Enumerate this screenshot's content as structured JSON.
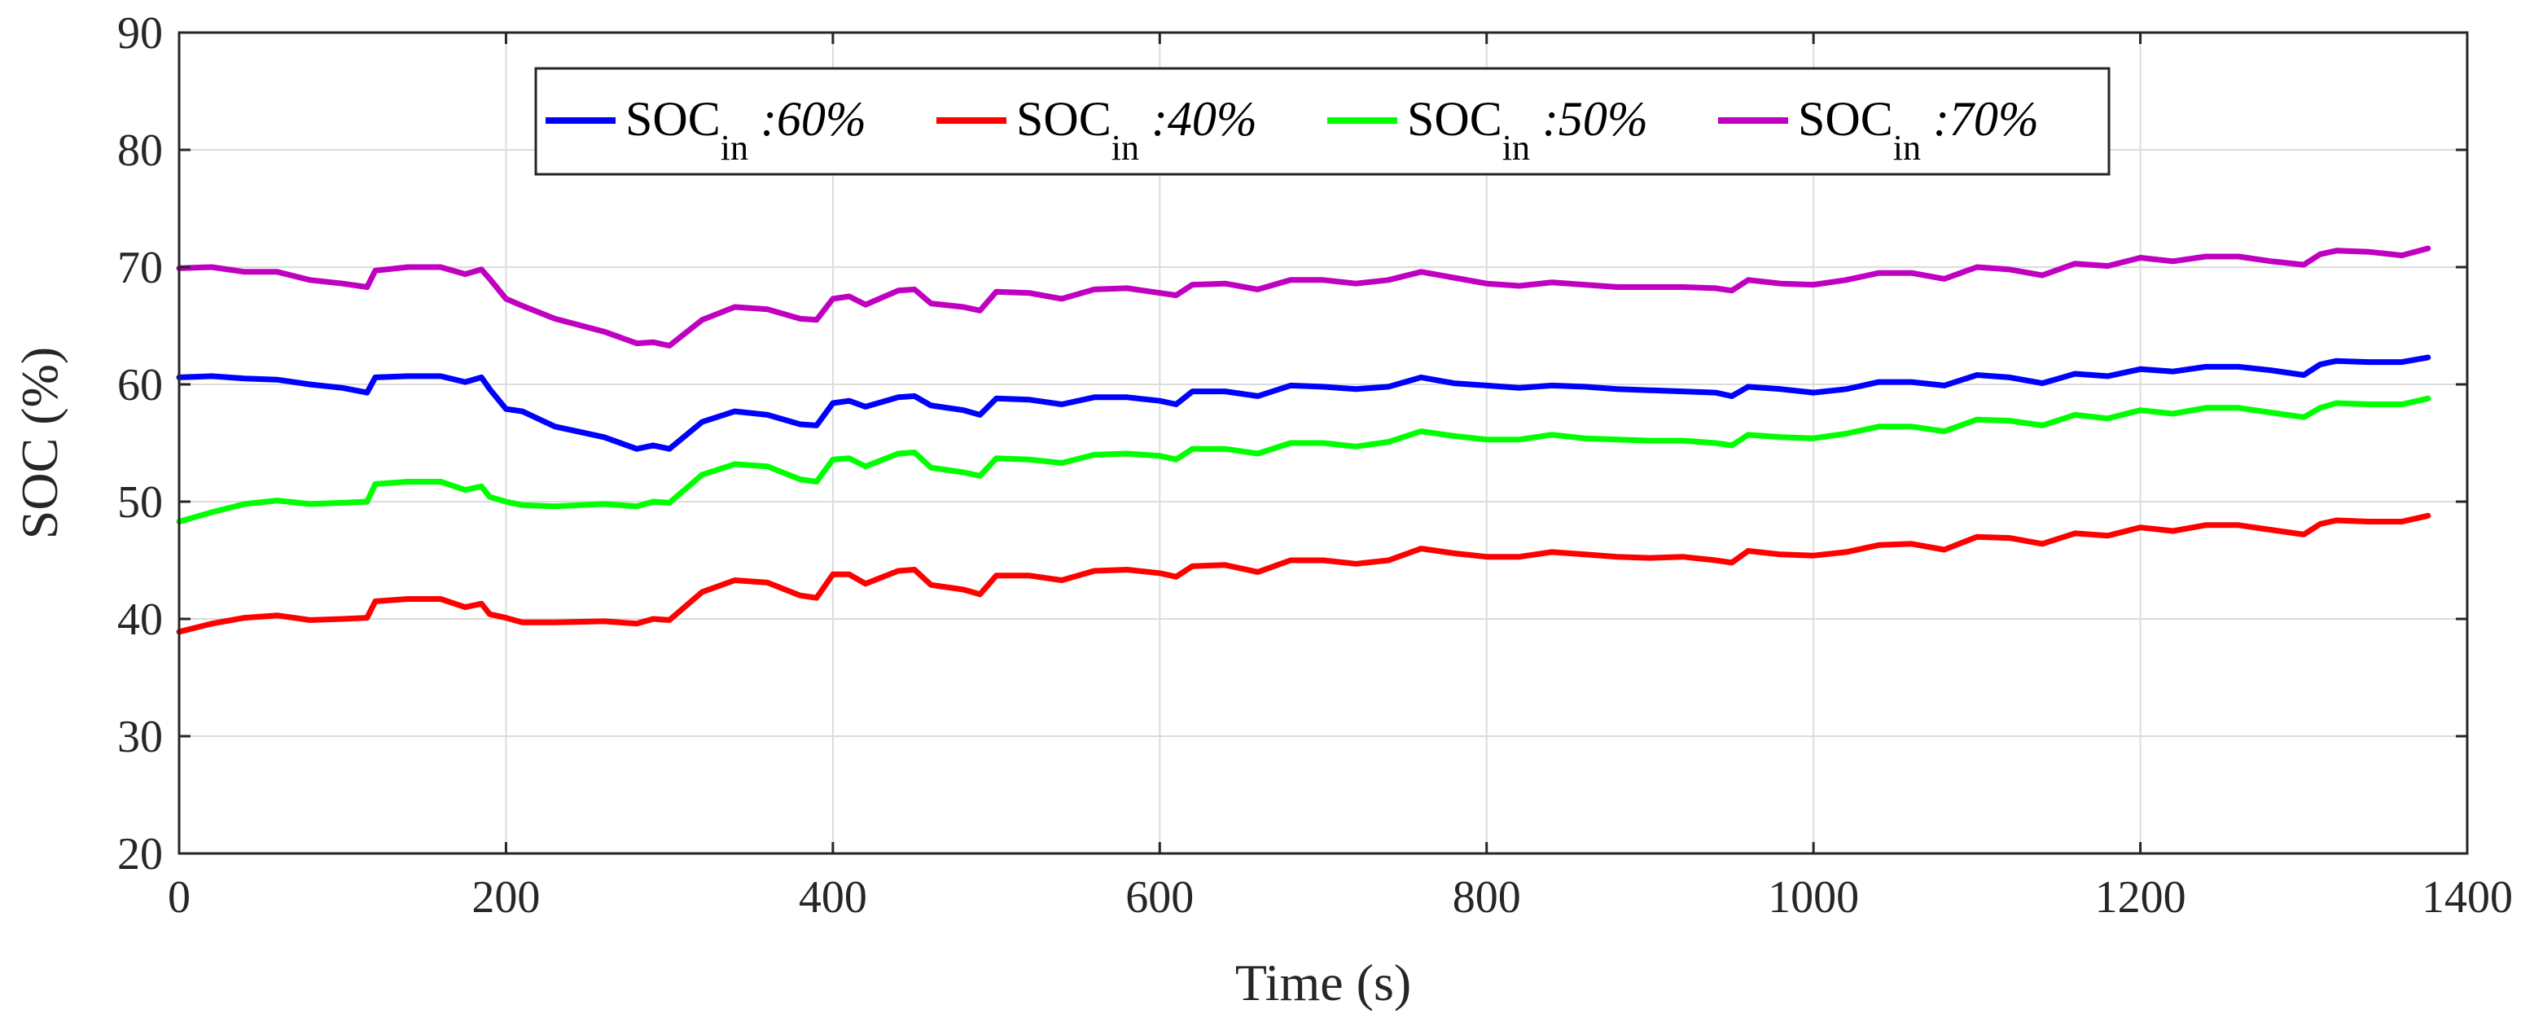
{
  "chart_data": {
    "type": "line",
    "xlabel": "Time (s)",
    "ylabel": "SOC (%)",
    "xlim": [
      0,
      1400
    ],
    "ylim": [
      20,
      90
    ],
    "xticks": [
      0,
      200,
      400,
      600,
      800,
      1000,
      1200,
      1400
    ],
    "yticks": [
      20,
      30,
      40,
      50,
      60,
      70,
      80,
      90
    ],
    "grid": true,
    "legend_position": "top-center",
    "series": [
      {
        "name": "SOC in :60%",
        "legend_main": "SOC",
        "legend_sub": "in",
        "legend_suffix": " :60%",
        "color": "#0000ff",
        "x": [
          0,
          20,
          40,
          60,
          80,
          100,
          115,
          120,
          140,
          160,
          175,
          185,
          190,
          200,
          210,
          230,
          260,
          280,
          290,
          300,
          320,
          340,
          360,
          380,
          390,
          400,
          410,
          420,
          440,
          450,
          460,
          480,
          490,
          500,
          520,
          540,
          560,
          580,
          600,
          610,
          620,
          640,
          660,
          680,
          700,
          720,
          740,
          760,
          780,
          800,
          820,
          840,
          860,
          880,
          900,
          920,
          940,
          950,
          960,
          980,
          1000,
          1020,
          1040,
          1060,
          1080,
          1100,
          1120,
          1140,
          1160,
          1180,
          1200,
          1220,
          1240,
          1260,
          1280,
          1300,
          1310,
          1320,
          1340,
          1360,
          1376
        ],
        "y": [
          60.6,
          60.7,
          60.5,
          60.4,
          60.0,
          59.7,
          59.3,
          60.6,
          60.7,
          60.7,
          60.2,
          60.6,
          59.6,
          57.9,
          57.7,
          56.4,
          55.5,
          54.5,
          54.8,
          54.5,
          56.8,
          57.7,
          57.4,
          56.6,
          56.5,
          58.4,
          58.6,
          58.1,
          58.9,
          59.0,
          58.2,
          57.8,
          57.4,
          58.8,
          58.7,
          58.3,
          58.9,
          58.9,
          58.6,
          58.3,
          59.4,
          59.4,
          59.0,
          59.9,
          59.8,
          59.6,
          59.8,
          60.6,
          60.1,
          59.9,
          59.7,
          59.9,
          59.8,
          59.6,
          59.5,
          59.4,
          59.3,
          59.0,
          59.8,
          59.6,
          59.3,
          59.6,
          60.2,
          60.2,
          59.9,
          60.8,
          60.6,
          60.1,
          60.9,
          60.7,
          61.3,
          61.1,
          61.5,
          61.5,
          61.2,
          60.8,
          61.7,
          62.0,
          61.9,
          61.9,
          62.3
        ]
      },
      {
        "name": "SOC in :40%",
        "legend_main": "SOC",
        "legend_sub": "in",
        "legend_suffix": " :40%",
        "color": "#ff0000",
        "x": [
          0,
          20,
          40,
          60,
          80,
          100,
          115,
          120,
          140,
          160,
          175,
          185,
          190,
          200,
          210,
          230,
          260,
          280,
          290,
          300,
          320,
          340,
          360,
          380,
          390,
          400,
          410,
          420,
          440,
          450,
          460,
          480,
          490,
          500,
          520,
          540,
          560,
          580,
          600,
          610,
          620,
          640,
          660,
          680,
          700,
          720,
          740,
          760,
          780,
          800,
          820,
          840,
          860,
          880,
          900,
          920,
          940,
          950,
          960,
          980,
          1000,
          1020,
          1040,
          1060,
          1080,
          1100,
          1120,
          1140,
          1160,
          1180,
          1200,
          1220,
          1240,
          1260,
          1280,
          1300,
          1310,
          1320,
          1340,
          1360,
          1376
        ],
        "y": [
          38.9,
          39.6,
          40.1,
          40.3,
          39.9,
          40.0,
          40.1,
          41.5,
          41.7,
          41.7,
          41.0,
          41.3,
          40.4,
          40.1,
          39.7,
          39.7,
          39.8,
          39.6,
          40.0,
          39.9,
          42.3,
          43.3,
          43.1,
          42.0,
          41.8,
          43.8,
          43.8,
          43.0,
          44.1,
          44.2,
          42.9,
          42.5,
          42.1,
          43.7,
          43.7,
          43.3,
          44.1,
          44.2,
          43.9,
          43.6,
          44.5,
          44.6,
          44.0,
          45.0,
          45.0,
          44.7,
          45.0,
          46.0,
          45.6,
          45.3,
          45.3,
          45.7,
          45.5,
          45.3,
          45.2,
          45.3,
          45.0,
          44.8,
          45.8,
          45.5,
          45.4,
          45.7,
          46.3,
          46.4,
          45.9,
          47.0,
          46.9,
          46.4,
          47.3,
          47.1,
          47.8,
          47.5,
          48.0,
          48.0,
          47.6,
          47.2,
          48.1,
          48.4,
          48.3,
          48.3,
          48.8
        ]
      },
      {
        "name": "SOC in :50%",
        "legend_main": "SOC",
        "legend_sub": "in",
        "legend_suffix": " :50%",
        "color": "#00ff00",
        "x": [
          0,
          20,
          40,
          60,
          80,
          100,
          115,
          120,
          140,
          160,
          175,
          185,
          190,
          200,
          210,
          230,
          260,
          280,
          290,
          300,
          320,
          340,
          360,
          380,
          390,
          400,
          410,
          420,
          440,
          450,
          460,
          480,
          490,
          500,
          520,
          540,
          560,
          580,
          600,
          610,
          620,
          640,
          660,
          680,
          700,
          720,
          740,
          760,
          780,
          800,
          820,
          840,
          860,
          880,
          900,
          920,
          940,
          950,
          960,
          980,
          1000,
          1020,
          1040,
          1060,
          1080,
          1100,
          1120,
          1140,
          1160,
          1180,
          1200,
          1220,
          1240,
          1260,
          1280,
          1300,
          1310,
          1320,
          1340,
          1360,
          1376
        ],
        "y": [
          48.3,
          49.1,
          49.8,
          50.1,
          49.8,
          49.9,
          50.0,
          51.5,
          51.7,
          51.7,
          51.0,
          51.3,
          50.4,
          50.0,
          49.7,
          49.6,
          49.8,
          49.6,
          50.0,
          49.9,
          52.3,
          53.2,
          53.0,
          51.9,
          51.7,
          53.6,
          53.7,
          53.0,
          54.1,
          54.2,
          52.9,
          52.5,
          52.2,
          53.7,
          53.6,
          53.3,
          54.0,
          54.1,
          53.9,
          53.6,
          54.5,
          54.5,
          54.1,
          55.0,
          55.0,
          54.7,
          55.1,
          56.0,
          55.6,
          55.3,
          55.3,
          55.7,
          55.4,
          55.3,
          55.2,
          55.2,
          55.0,
          54.8,
          55.7,
          55.5,
          55.4,
          55.8,
          56.4,
          56.4,
          56.0,
          57.0,
          56.9,
          56.5,
          57.4,
          57.1,
          57.8,
          57.5,
          58.0,
          58.0,
          57.6,
          57.2,
          58.0,
          58.4,
          58.3,
          58.3,
          58.8
        ]
      },
      {
        "name": "SOC in :70%",
        "legend_main": "SOC",
        "legend_sub": "in",
        "legend_suffix": " :70%",
        "color": "#c000c0",
        "x": [
          0,
          20,
          40,
          60,
          80,
          100,
          115,
          120,
          140,
          160,
          175,
          185,
          190,
          200,
          210,
          230,
          260,
          280,
          290,
          300,
          320,
          340,
          360,
          380,
          390,
          400,
          410,
          420,
          440,
          450,
          460,
          480,
          490,
          500,
          520,
          540,
          560,
          580,
          600,
          610,
          620,
          640,
          660,
          680,
          700,
          720,
          740,
          760,
          780,
          800,
          820,
          840,
          860,
          880,
          900,
          920,
          940,
          950,
          960,
          980,
          1000,
          1020,
          1040,
          1060,
          1080,
          1100,
          1120,
          1140,
          1160,
          1180,
          1200,
          1220,
          1240,
          1260,
          1280,
          1300,
          1310,
          1320,
          1340,
          1360,
          1376
        ],
        "y": [
          69.9,
          70.0,
          69.6,
          69.6,
          68.9,
          68.6,
          68.3,
          69.7,
          70.0,
          70.0,
          69.4,
          69.8,
          69.0,
          67.3,
          66.7,
          65.6,
          64.5,
          63.5,
          63.6,
          63.3,
          65.5,
          66.6,
          66.4,
          65.6,
          65.5,
          67.3,
          67.5,
          66.8,
          68.0,
          68.1,
          66.9,
          66.6,
          66.3,
          67.9,
          67.8,
          67.3,
          68.1,
          68.2,
          67.8,
          67.6,
          68.5,
          68.6,
          68.1,
          68.9,
          68.9,
          68.6,
          68.9,
          69.6,
          69.1,
          68.6,
          68.4,
          68.7,
          68.5,
          68.3,
          68.3,
          68.3,
          68.2,
          68.0,
          68.9,
          68.6,
          68.5,
          68.9,
          69.5,
          69.5,
          69.0,
          70.0,
          69.8,
          69.3,
          70.3,
          70.1,
          70.8,
          70.5,
          70.9,
          70.9,
          70.5,
          70.2,
          71.1,
          71.4,
          71.3,
          71.0,
          71.6
        ]
      }
    ]
  }
}
